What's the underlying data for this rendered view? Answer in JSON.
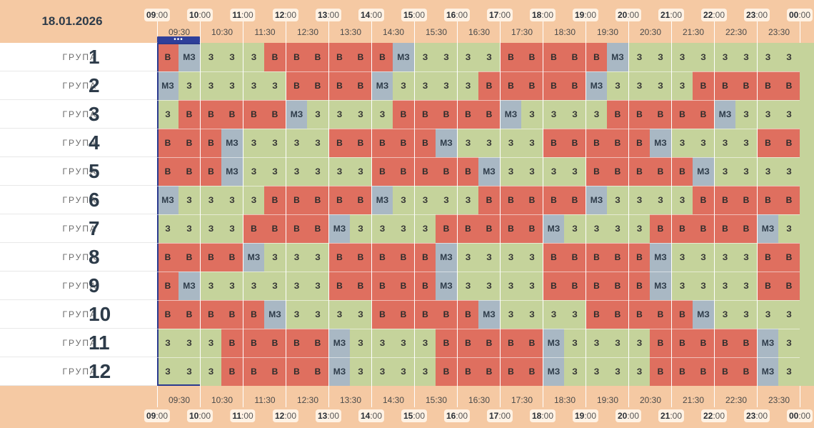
{
  "date": "18.01.2026",
  "hours": [
    {
      "h": "09",
      "m": ":00"
    },
    {
      "h": "10",
      "m": ":00"
    },
    {
      "h": "11",
      "m": ":00"
    },
    {
      "h": "12",
      "m": ":00"
    },
    {
      "h": "13",
      "m": ":00"
    },
    {
      "h": "14",
      "m": ":00"
    },
    {
      "h": "15",
      "m": ":00"
    },
    {
      "h": "16",
      "m": ":00"
    },
    {
      "h": "17",
      "m": ":00"
    },
    {
      "h": "18",
      "m": ":00"
    },
    {
      "h": "19",
      "m": ":00"
    },
    {
      "h": "20",
      "m": ":00"
    },
    {
      "h": "21",
      "m": ":00"
    },
    {
      "h": "22",
      "m": ":00"
    },
    {
      "h": "23",
      "m": ":00"
    },
    {
      "h": "00",
      "m": ":00"
    }
  ],
  "halves": [
    "09:30",
    "10:30",
    "11:30",
    "12:30",
    "13:30",
    "14:30",
    "15:30",
    "16:30",
    "17:30",
    "18:30",
    "19:30",
    "20:30",
    "21:30",
    "22:30",
    "23:30"
  ],
  "group_word": "ГРУПА",
  "now_marker": "•••",
  "legend": {
    "on": "З",
    "off": "В",
    "partial": "МЗ"
  },
  "groups": [
    {
      "num": "1",
      "slots": [
        "В",
        "МЗ",
        "З",
        "З",
        "З",
        "В",
        "В",
        "В",
        "В",
        "В",
        "В",
        "МЗ",
        "З",
        "З",
        "З",
        "З",
        "В",
        "В",
        "В",
        "В",
        "В",
        "МЗ",
        "З",
        "З",
        "З",
        "З",
        "З",
        "З",
        "З",
        "З"
      ]
    },
    {
      "num": "2",
      "slots": [
        "МЗ",
        "З",
        "З",
        "З",
        "З",
        "З",
        "В",
        "В",
        "В",
        "В",
        "МЗ",
        "З",
        "З",
        "З",
        "З",
        "В",
        "В",
        "В",
        "В",
        "В",
        "МЗ",
        "З",
        "З",
        "З",
        "З",
        "В",
        "В",
        "В",
        "В",
        "В"
      ]
    },
    {
      "num": "3",
      "slots": [
        "З",
        "В",
        "В",
        "В",
        "В",
        "В",
        "МЗ",
        "З",
        "З",
        "З",
        "З",
        "В",
        "В",
        "В",
        "В",
        "В",
        "МЗ",
        "З",
        "З",
        "З",
        "З",
        "В",
        "В",
        "В",
        "В",
        "В",
        "МЗ",
        "З",
        "З",
        "З"
      ]
    },
    {
      "num": "4",
      "slots": [
        "В",
        "В",
        "В",
        "МЗ",
        "З",
        "З",
        "З",
        "З",
        "В",
        "В",
        "В",
        "В",
        "В",
        "МЗ",
        "З",
        "З",
        "З",
        "З",
        "В",
        "В",
        "В",
        "В",
        "В",
        "МЗ",
        "З",
        "З",
        "З",
        "З",
        "В",
        "В"
      ]
    },
    {
      "num": "5",
      "slots": [
        "В",
        "В",
        "В",
        "МЗ",
        "З",
        "З",
        "З",
        "З",
        "З",
        "З",
        "В",
        "В",
        "В",
        "В",
        "В",
        "МЗ",
        "З",
        "З",
        "З",
        "З",
        "В",
        "В",
        "В",
        "В",
        "В",
        "МЗ",
        "З",
        "З",
        "З",
        "З"
      ]
    },
    {
      "num": "6",
      "slots": [
        "МЗ",
        "З",
        "З",
        "З",
        "З",
        "В",
        "В",
        "В",
        "В",
        "В",
        "МЗ",
        "З",
        "З",
        "З",
        "З",
        "В",
        "В",
        "В",
        "В",
        "В",
        "МЗ",
        "З",
        "З",
        "З",
        "З",
        "В",
        "В",
        "В",
        "В",
        "В"
      ]
    },
    {
      "num": "7",
      "slots": [
        "З",
        "З",
        "З",
        "З",
        "В",
        "В",
        "В",
        "В",
        "МЗ",
        "З",
        "З",
        "З",
        "З",
        "В",
        "В",
        "В",
        "В",
        "В",
        "МЗ",
        "З",
        "З",
        "З",
        "З",
        "В",
        "В",
        "В",
        "В",
        "В",
        "МЗ",
        "З"
      ]
    },
    {
      "num": "8",
      "slots": [
        "В",
        "В",
        "В",
        "В",
        "МЗ",
        "З",
        "З",
        "З",
        "В",
        "В",
        "В",
        "В",
        "В",
        "МЗ",
        "З",
        "З",
        "З",
        "З",
        "В",
        "В",
        "В",
        "В",
        "В",
        "МЗ",
        "З",
        "З",
        "З",
        "З",
        "В",
        "В"
      ]
    },
    {
      "num": "9",
      "slots": [
        "В",
        "МЗ",
        "З",
        "З",
        "З",
        "З",
        "З",
        "З",
        "В",
        "В",
        "В",
        "В",
        "В",
        "МЗ",
        "З",
        "З",
        "З",
        "З",
        "В",
        "В",
        "В",
        "В",
        "В",
        "МЗ",
        "З",
        "З",
        "З",
        "З",
        "В",
        "В"
      ]
    },
    {
      "num": "10",
      "slots": [
        "В",
        "В",
        "В",
        "В",
        "В",
        "МЗ",
        "З",
        "З",
        "З",
        "З",
        "В",
        "В",
        "В",
        "В",
        "В",
        "МЗ",
        "З",
        "З",
        "З",
        "З",
        "В",
        "В",
        "В",
        "В",
        "В",
        "МЗ",
        "З",
        "З",
        "З",
        "З"
      ]
    },
    {
      "num": "11",
      "slots": [
        "З",
        "З",
        "З",
        "В",
        "В",
        "В",
        "В",
        "В",
        "МЗ",
        "З",
        "З",
        "З",
        "З",
        "В",
        "В",
        "В",
        "В",
        "В",
        "МЗ",
        "З",
        "З",
        "З",
        "З",
        "В",
        "В",
        "В",
        "В",
        "В",
        "МЗ",
        "З"
      ]
    },
    {
      "num": "12",
      "slots": [
        "З",
        "З",
        "З",
        "В",
        "В",
        "В",
        "В",
        "В",
        "МЗ",
        "З",
        "З",
        "З",
        "З",
        "В",
        "В",
        "В",
        "В",
        "В",
        "МЗ",
        "З",
        "З",
        "З",
        "З",
        "В",
        "В",
        "В",
        "В",
        "В",
        "МЗ",
        "З"
      ]
    }
  ],
  "colors": {
    "on": "#c5d39b",
    "off": "#df6f5f",
    "partial": "#a9b8c4",
    "accent": "#2f3f9a",
    "header_bg": "#f5c9a3"
  }
}
